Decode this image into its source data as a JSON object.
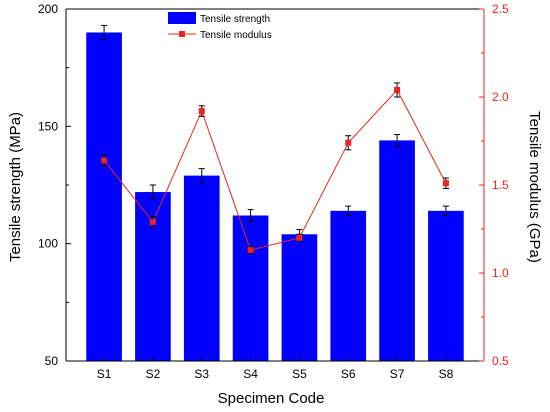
{
  "chart_data": {
    "type": "bar",
    "categories": [
      "S1",
      "S2",
      "S3",
      "S4",
      "S5",
      "S6",
      "S7",
      "S8"
    ],
    "xlabel": "Specimen Code",
    "ylabel_left": "Tensile strength (MPa)",
    "ylabel_right": "Tensile modulus (GPa)",
    "ylim_left": [
      50,
      200
    ],
    "ylim_right": [
      0.5,
      2.5
    ],
    "yticks_left": [
      "50",
      "100",
      "150",
      "200"
    ],
    "yticks_right": [
      "0.5",
      "1.0",
      "1.5",
      "2.0",
      "2.5"
    ],
    "grid": false,
    "legend_position": "top-center",
    "series": [
      {
        "name": "Tensile strength",
        "kind": "bar",
        "axis": "left",
        "color": "#0000ff",
        "values": [
          190,
          122,
          129,
          112,
          104,
          114,
          144,
          114
        ],
        "errors": [
          3,
          3,
          3,
          2.5,
          2,
          2,
          2.5,
          2
        ]
      },
      {
        "name": "Tensile modulus",
        "kind": "line",
        "axis": "right",
        "color": "#e8261f",
        "values": [
          1.64,
          1.29,
          1.92,
          1.13,
          1.2,
          1.74,
          2.04,
          1.51
        ],
        "errors": [
          0.03,
          0.03,
          0.03,
          0.02,
          0.02,
          0.04,
          0.04,
          0.03
        ]
      }
    ]
  },
  "colors": {
    "bar": "#0000ff",
    "line": "#e8261f",
    "right_axis": "#e8261f",
    "left_axis": "#000000"
  }
}
